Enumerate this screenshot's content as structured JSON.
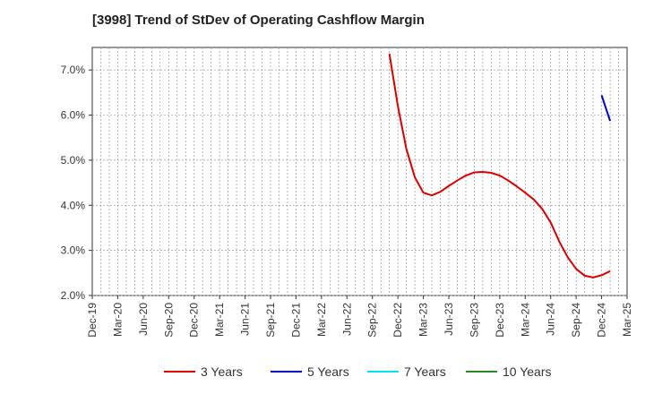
{
  "chart_data": {
    "type": "line",
    "title": "[3998]  Trend of StDev of Operating Cashflow Margin",
    "xlabel": "",
    "ylabel": "",
    "ylim": [
      2.0,
      7.5
    ],
    "yticks": [
      2.0,
      3.0,
      4.0,
      5.0,
      6.0,
      7.0
    ],
    "ytick_labels": [
      "2.0%",
      "3.0%",
      "4.0%",
      "5.0%",
      "6.0%",
      "7.0%"
    ],
    "x_tick_labels": [
      "Dec-19",
      "Mar-20",
      "Jun-20",
      "Sep-20",
      "Dec-20",
      "Mar-21",
      "Jun-21",
      "Sep-21",
      "Dec-21",
      "Mar-22",
      "Jun-22",
      "Sep-22",
      "Dec-22",
      "Mar-23",
      "Jun-23",
      "Sep-23",
      "Dec-23",
      "Mar-24",
      "Jun-24",
      "Sep-24",
      "Dec-24",
      "Mar-25"
    ],
    "grid": true,
    "legend_position": "bottom",
    "series": [
      {
        "name": "3 Years",
        "color": "#dd0000",
        "points": [
          [
            "Nov-22",
            7.36
          ],
          [
            "Dec-22",
            6.2
          ],
          [
            "Jan-23",
            5.25
          ],
          [
            "Feb-23",
            4.62
          ],
          [
            "Mar-23",
            4.28
          ],
          [
            "Apr-23",
            4.22
          ],
          [
            "May-23",
            4.3
          ],
          [
            "Jun-23",
            4.43
          ],
          [
            "Jul-23",
            4.55
          ],
          [
            "Aug-23",
            4.66
          ],
          [
            "Sep-23",
            4.73
          ],
          [
            "Oct-23",
            4.74
          ],
          [
            "Nov-23",
            4.72
          ],
          [
            "Dec-23",
            4.66
          ],
          [
            "Jan-24",
            4.55
          ],
          [
            "Feb-24",
            4.42
          ],
          [
            "Mar-24",
            4.28
          ],
          [
            "Apr-24",
            4.13
          ],
          [
            "May-24",
            3.92
          ],
          [
            "Jun-24",
            3.62
          ],
          [
            "Jul-24",
            3.2
          ],
          [
            "Aug-24",
            2.85
          ],
          [
            "Sep-24",
            2.59
          ],
          [
            "Oct-24",
            2.44
          ],
          [
            "Nov-24",
            2.4
          ],
          [
            "Dec-24",
            2.45
          ],
          [
            "Jan-25",
            2.54
          ]
        ]
      },
      {
        "name": "5 Years",
        "color": "#0000cc",
        "points": [
          [
            "Dec-24",
            6.44
          ],
          [
            "Jan-25",
            5.87
          ]
        ]
      },
      {
        "name": "7 Years",
        "color": "#00e5ee",
        "points": []
      },
      {
        "name": "10 Years",
        "color": "#228b22",
        "points": []
      }
    ]
  }
}
